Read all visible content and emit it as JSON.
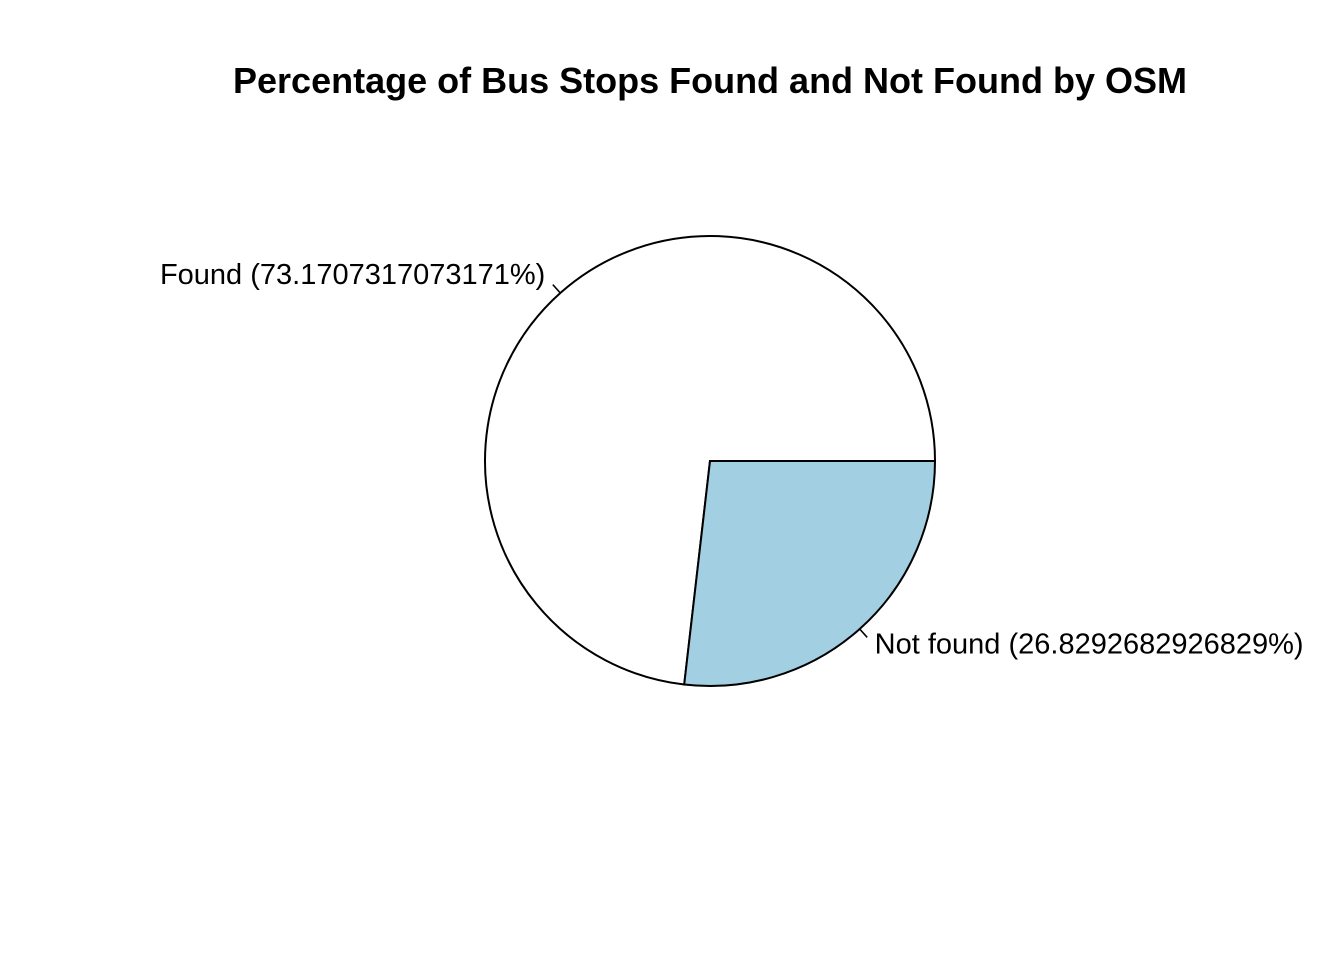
{
  "chart_data": {
    "type": "pie",
    "title": "Percentage of Bus Stops Found and Not Found by OSM",
    "start_angle_deg": 0,
    "direction": "counterclockwise",
    "slices": [
      {
        "category": "Found",
        "value": 73.1707317073171,
        "label": "Found (73.1707317073171%)",
        "color": "#ffffff"
      },
      {
        "category": "Not found",
        "value": 26.8292682926829,
        "label": "Not found (26.8292682926829%)",
        "color": "#a2cfe1"
      }
    ]
  }
}
